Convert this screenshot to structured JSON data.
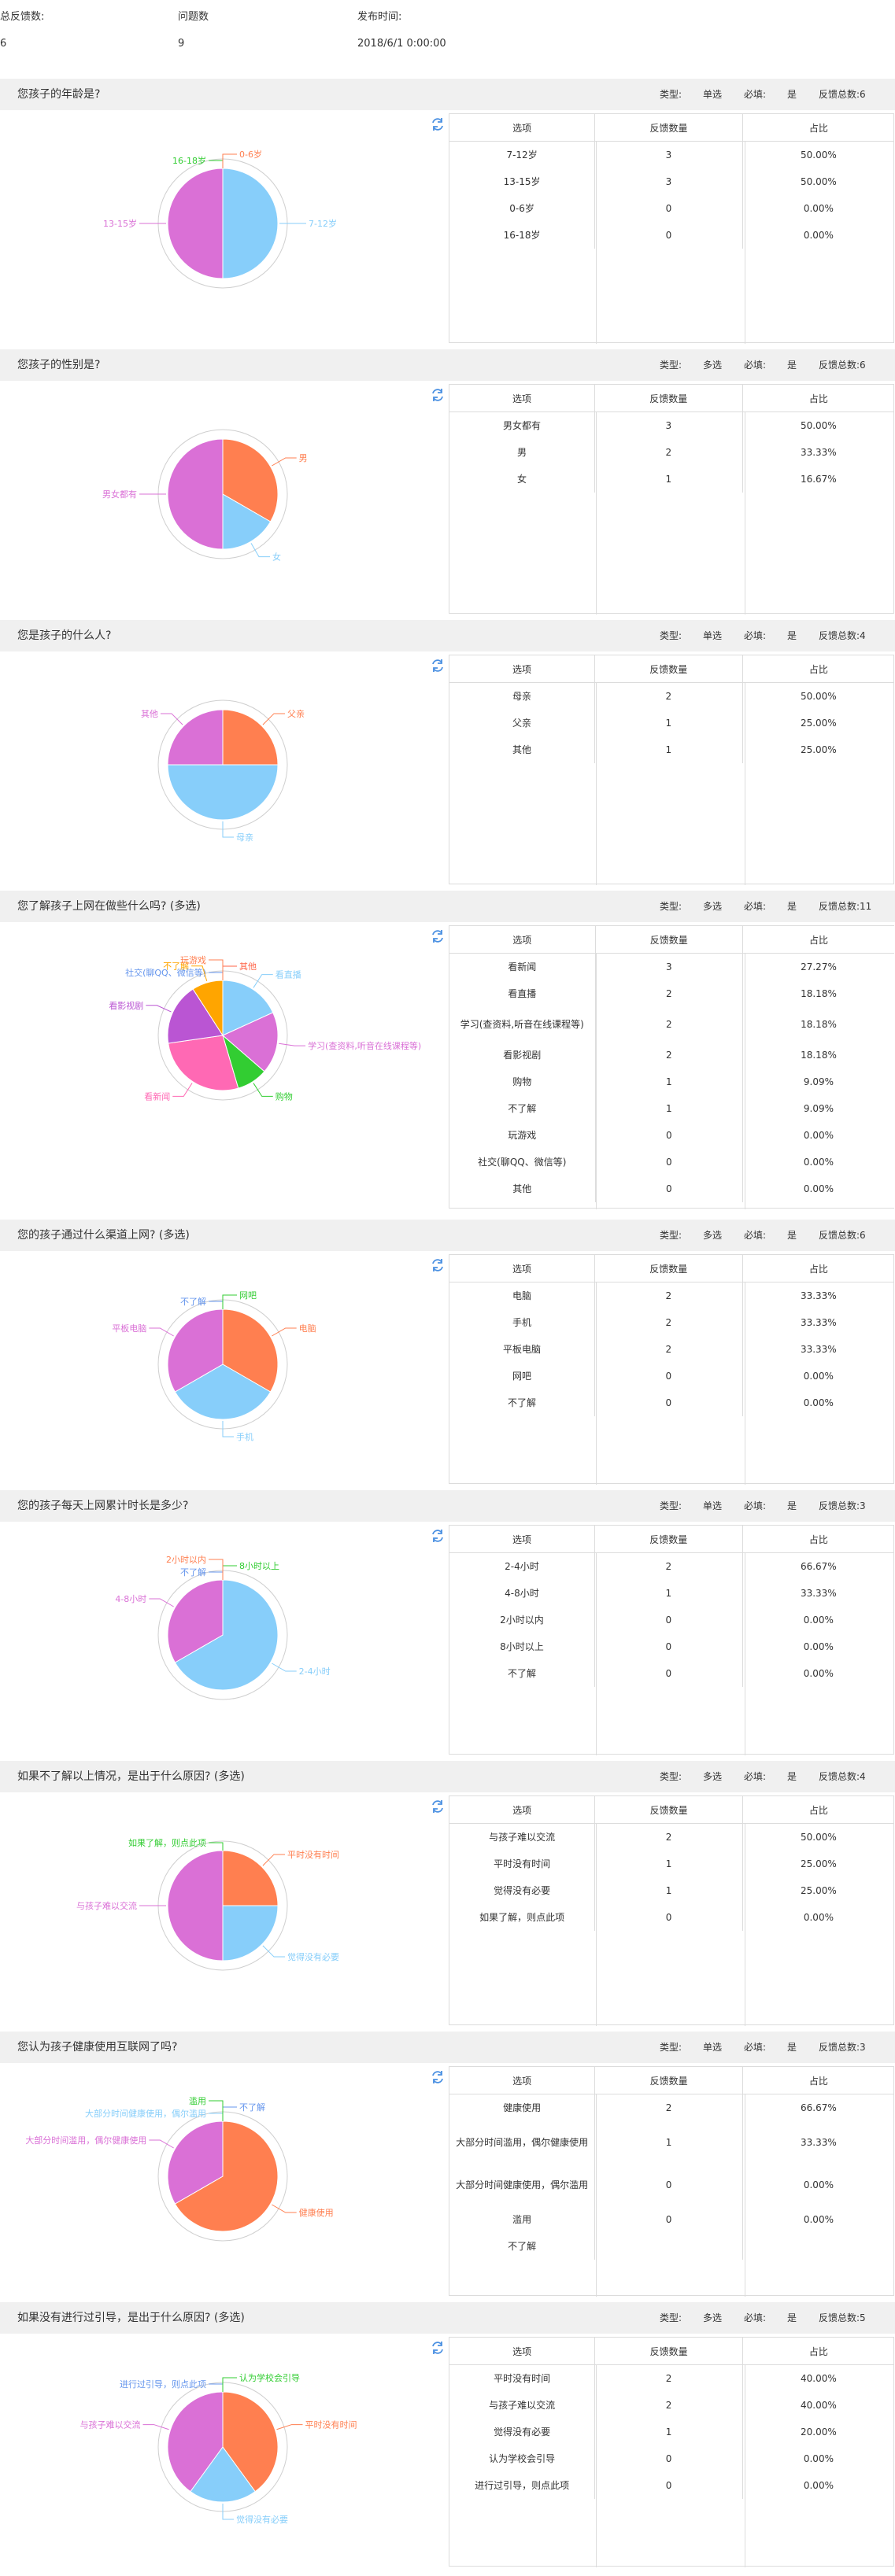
{
  "summary": {
    "total_feedback_label": "总反馈数:",
    "total_feedback_value": "6",
    "question_count_label": "问题数",
    "question_count_value": "9",
    "publish_time_label": "发布时间:",
    "publish_time_value": "2018/6/1 0:00:00"
  },
  "labels": {
    "type": "类型:",
    "required": "必填:",
    "option": "选项",
    "count": "反馈数量",
    "ratio": "占比"
  },
  "icons": {
    "refresh": "refresh-icon"
  },
  "colors": {
    "header_bg": "#f0f0f0",
    "sky": "#87cefa",
    "orchid": "#da70d6",
    "coral": "#ff7f50",
    "lime": "#32cd32",
    "cornflower": "#6495ed",
    "hotpink": "#ff69b4",
    "darkorchid": "#ba55d3",
    "orange": "#ffa500",
    "tomato": "#ff6347"
  },
  "sections": [
    {
      "title": "您孩子的年龄是?",
      "type": "单选",
      "required": "是",
      "total": "反馈总数:6",
      "options": [
        {
          "label": "7-12岁",
          "count": "3",
          "pct": "50.00%"
        },
        {
          "label": "13-15岁",
          "count": "3",
          "pct": "50.00%"
        },
        {
          "label": "0-6岁",
          "count": "0",
          "pct": "0.00%"
        },
        {
          "label": "16-18岁",
          "count": "0",
          "pct": "0.00%"
        }
      ]
    },
    {
      "title": "您孩子的性别是?",
      "type": "多选",
      "required": "是",
      "total": "反馈总数:6",
      "options": [
        {
          "label": "男女都有",
          "count": "3",
          "pct": "50.00%"
        },
        {
          "label": "男",
          "count": "2",
          "pct": "33.33%"
        },
        {
          "label": "女",
          "count": "1",
          "pct": "16.67%"
        }
      ]
    },
    {
      "title": "您是孩子的什么人?",
      "type": "单选",
      "required": "是",
      "total": "反馈总数:4",
      "options": [
        {
          "label": "母亲",
          "count": "2",
          "pct": "50.00%"
        },
        {
          "label": "父亲",
          "count": "1",
          "pct": "25.00%"
        },
        {
          "label": "其他",
          "count": "1",
          "pct": "25.00%"
        }
      ]
    },
    {
      "title": "您了解孩子上网在做些什么吗? (多选)",
      "type": "多选",
      "required": "是",
      "total": "反馈总数:11",
      "options": [
        {
          "label": "看新闻",
          "count": "3",
          "pct": "27.27%"
        },
        {
          "label": "看直播",
          "count": "2",
          "pct": "18.18%"
        },
        {
          "label": "学习(查资料,听音在线课程等)",
          "count": "2",
          "pct": "18.18%"
        },
        {
          "label": "看影视剧",
          "count": "2",
          "pct": "18.18%"
        },
        {
          "label": "购物",
          "count": "1",
          "pct": "9.09%"
        },
        {
          "label": "不了解",
          "count": "1",
          "pct": "9.09%"
        },
        {
          "label": "玩游戏",
          "count": "0",
          "pct": "0.00%"
        },
        {
          "label": "社交(聊QQ、微信等)",
          "count": "0",
          "pct": "0.00%"
        },
        {
          "label": "其他",
          "count": "0",
          "pct": "0.00%"
        }
      ]
    },
    {
      "title": "您的孩子通过什么渠道上网? (多选)",
      "type": "多选",
      "required": "是",
      "total": "反馈总数:6",
      "options": [
        {
          "label": "电脑",
          "count": "2",
          "pct": "33.33%"
        },
        {
          "label": "手机",
          "count": "2",
          "pct": "33.33%"
        },
        {
          "label": "平板电脑",
          "count": "2",
          "pct": "33.33%"
        },
        {
          "label": "网吧",
          "count": "0",
          "pct": "0.00%"
        },
        {
          "label": "不了解",
          "count": "0",
          "pct": "0.00%"
        }
      ]
    },
    {
      "title": "您的孩子每天上网累计时长是多少?",
      "type": "单选",
      "required": "是",
      "total": "反馈总数:3",
      "options": [
        {
          "label": "2-4小时",
          "count": "2",
          "pct": "66.67%"
        },
        {
          "label": "4-8小时",
          "count": "1",
          "pct": "33.33%"
        },
        {
          "label": "2小时以内",
          "count": "0",
          "pct": "0.00%"
        },
        {
          "label": "8小时以上",
          "count": "0",
          "pct": "0.00%"
        },
        {
          "label": "不了解",
          "count": "0",
          "pct": "0.00%"
        }
      ]
    },
    {
      "title": "如果不了解以上情况，是出于什么原因? (多选)",
      "type": "多选",
      "required": "是",
      "total": "反馈总数:4",
      "options": [
        {
          "label": "与孩子难以交流",
          "count": "2",
          "pct": "50.00%"
        },
        {
          "label": "平时没有时间",
          "count": "1",
          "pct": "25.00%"
        },
        {
          "label": "觉得没有必要",
          "count": "1",
          "pct": "25.00%"
        },
        {
          "label": "如果了解，则点此项",
          "count": "0",
          "pct": "0.00%"
        }
      ]
    },
    {
      "title": "您认为孩子健康使用互联网了吗?",
      "type": "单选",
      "required": "是",
      "total": "反馈总数:3",
      "options": [
        {
          "label": "健康使用",
          "count": "2",
          "pct": "66.67%"
        },
        {
          "label": "大部分时间滥用，偶尔健康使用",
          "count": "1",
          "pct": "33.33%"
        },
        {
          "label": "大部分时间健康使用，偶尔滥用",
          "count": "0",
          "pct": "0.00%"
        },
        {
          "label": "滥用",
          "count": "0",
          "pct": "0.00%"
        },
        {
          "label": "不了解",
          "count": "",
          "pct": ""
        }
      ]
    },
    {
      "title": "如果没有进行过引导，是出于什么原因? (多选)",
      "type": "多选",
      "required": "是",
      "total": "反馈总数:5",
      "options": [
        {
          "label": "平时没有时间",
          "count": "2",
          "pct": "40.00%"
        },
        {
          "label": "与孩子难以交流",
          "count": "2",
          "pct": "40.00%"
        },
        {
          "label": "觉得没有必要",
          "count": "1",
          "pct": "20.00%"
        },
        {
          "label": "认为学校会引导",
          "count": "0",
          "pct": "0.00%"
        },
        {
          "label": "进行过引导，则点此项",
          "count": "0",
          "pct": "0.00%"
        }
      ]
    }
  ],
  "chart_data": [
    {
      "type": "pie",
      "slices": [
        {
          "label": "7-12岁",
          "value": 3,
          "color": "#87cefa"
        },
        {
          "label": "13-15岁",
          "value": 3,
          "color": "#da70d6"
        },
        {
          "label": "16-18岁",
          "value": 0,
          "color": "#32cd32"
        },
        {
          "label": "0-6岁",
          "value": 0,
          "color": "#ff7f50"
        }
      ]
    },
    {
      "type": "pie",
      "slices": [
        {
          "label": "男",
          "value": 2,
          "color": "#ff7f50"
        },
        {
          "label": "女",
          "value": 1,
          "color": "#87cefa"
        },
        {
          "label": "男女都有",
          "value": 3,
          "color": "#da70d6"
        }
      ]
    },
    {
      "type": "pie",
      "slices": [
        {
          "label": "父亲",
          "value": 1,
          "color": "#ff7f50"
        },
        {
          "label": "母亲",
          "value": 2,
          "color": "#87cefa"
        },
        {
          "label": "其他",
          "value": 1,
          "color": "#da70d6"
        }
      ]
    },
    {
      "type": "pie",
      "slices": [
        {
          "label": "看直播",
          "value": 2,
          "color": "#87cefa"
        },
        {
          "label": "学习(查资料,听音在线课程等)",
          "value": 2,
          "color": "#da70d6"
        },
        {
          "label": "购物",
          "value": 1,
          "color": "#32cd32"
        },
        {
          "label": "社交(聊QQ、微信等)",
          "value": 0,
          "color": "#6495ed"
        },
        {
          "label": "看新闻",
          "value": 3,
          "color": "#ff69b4"
        },
        {
          "label": "看影视剧",
          "value": 2,
          "color": "#ba55d3"
        },
        {
          "label": "其他",
          "value": 0,
          "color": "#ff6347"
        },
        {
          "label": "不了解",
          "value": 1,
          "color": "#ffa500"
        },
        {
          "label": "玩游戏",
          "value": 0,
          "color": "#ff7f50"
        }
      ]
    },
    {
      "type": "pie",
      "slices": [
        {
          "label": "电脑",
          "value": 2,
          "color": "#ff7f50"
        },
        {
          "label": "手机",
          "value": 2,
          "color": "#87cefa"
        },
        {
          "label": "平板电脑",
          "value": 2,
          "color": "#da70d6"
        },
        {
          "label": "不了解",
          "value": 0,
          "color": "#6495ed"
        },
        {
          "label": "网吧",
          "value": 0,
          "color": "#32cd32"
        }
      ]
    },
    {
      "type": "pie",
      "slices": [
        {
          "label": "2-4小时",
          "value": 2,
          "color": "#87cefa"
        },
        {
          "label": "4-8小时",
          "value": 1,
          "color": "#da70d6"
        },
        {
          "label": "不了解",
          "value": 0,
          "color": "#6495ed"
        },
        {
          "label": "8小时以上",
          "value": 0,
          "color": "#32cd32"
        },
        {
          "label": "2小时以内",
          "value": 0,
          "color": "#ff7f50"
        }
      ]
    },
    {
      "type": "pie",
      "slices": [
        {
          "label": "平时没有时间",
          "value": 1,
          "color": "#ff7f50"
        },
        {
          "label": "觉得没有必要",
          "value": 1,
          "color": "#87cefa"
        },
        {
          "label": "与孩子难以交流",
          "value": 2,
          "color": "#da70d6"
        },
        {
          "label": "如果了解，则点此项",
          "value": 0,
          "color": "#32cd32"
        }
      ]
    },
    {
      "type": "pie",
      "slices": [
        {
          "label": "健康使用",
          "value": 2,
          "color": "#ff7f50"
        },
        {
          "label": "大部分时间健康使用，偶尔滥用",
          "value": 0,
          "color": "#87cefa"
        },
        {
          "label": "大部分时间滥用，偶尔健康使用",
          "value": 1,
          "color": "#da70d6"
        },
        {
          "label": "不了解",
          "value": 0,
          "color": "#6495ed"
        },
        {
          "label": "滥用",
          "value": 0,
          "color": "#32cd32"
        }
      ]
    },
    {
      "type": "pie",
      "slices": [
        {
          "label": "平时没有时间",
          "value": 2,
          "color": "#ff7f50"
        },
        {
          "label": "觉得没有必要",
          "value": 1,
          "color": "#87cefa"
        },
        {
          "label": "与孩子难以交流",
          "value": 2,
          "color": "#da70d6"
        },
        {
          "label": "进行过引导，则点此项",
          "value": 0,
          "color": "#6495ed"
        },
        {
          "label": "认为学校会引导",
          "value": 0,
          "color": "#32cd32"
        }
      ]
    }
  ]
}
